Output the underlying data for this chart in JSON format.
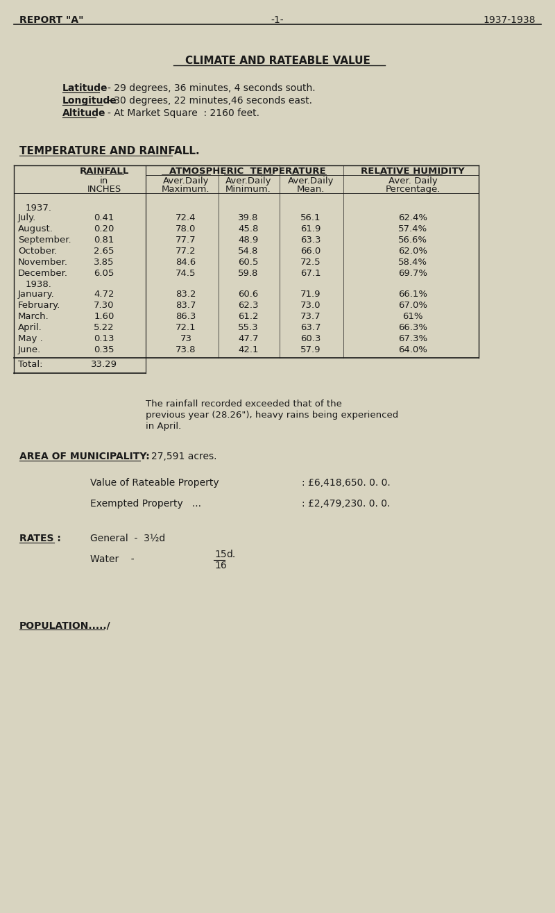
{
  "bg_color": "#d8d4c0",
  "text_color": "#1a1a1a",
  "header_left": "REPORT \"A\"",
  "header_center": "-1-",
  "header_right": "1937-1938",
  "title": "CLIMATE AND RATEABLE VALUE",
  "latitude_label": "Latitude",
  "latitude_value": "- 29 degrees, 36 minutes, 4 seconds south.",
  "longitude_label": "Longitude",
  "longitude_value": "- 30 degrees, 22 minutes,46 seconds east.",
  "altitude_label": "Altitude",
  "altitude_value": "- At Market Square  : 2160 feet.",
  "section_title": "TEMPERATURE AND RAINFALL.",
  "year1937": "1937.",
  "year1938": "1938.",
  "months": [
    "July.",
    "August.",
    "September.",
    "October.",
    "November.",
    "December.",
    "January.",
    "February.",
    "March.",
    "April.",
    "May .",
    "June."
  ],
  "rainfall": [
    "0.41",
    "0.20",
    "0.81",
    "2.65",
    "3.85",
    "6.05",
    "4.72",
    "7.30",
    "1.60",
    "5.22",
    "0.13",
    "0.35"
  ],
  "max_temp": [
    "72.4",
    "78.0",
    "77.7",
    "77.2",
    "84.6",
    "74.5",
    "83.2",
    "83.7",
    "86.3",
    "72.1",
    "73",
    "73.8"
  ],
  "min_temp": [
    "39.8",
    "45.8",
    "48.9",
    "54.8",
    "60.5",
    "59.8",
    "60.6",
    "62.3",
    "61.2",
    "55.3",
    "47.7",
    "42.1"
  ],
  "mean_temp": [
    "56.1",
    "61.9",
    "63.3",
    "66.0",
    "72.5",
    "67.1",
    "71.9",
    "73.0",
    "73.7",
    "63.7",
    "60.3",
    "57.9"
  ],
  "humidity": [
    "62.4%",
    "57.4%",
    "56.6%",
    "62.0%",
    "58.4%",
    "69.7%",
    "66.1%",
    "67.0%",
    "61%",
    "66.3%",
    "67.3%",
    "64.0%"
  ],
  "total_label": "Total:",
  "total_value": "33.29",
  "note_line1": "The rainfall recorded exceeded that of the",
  "note_line2": "previous year (28.26\"), heavy rains being experienced",
  "note_line3": "in April.",
  "area_label": "AREA OF MUNICIPALITY:",
  "area_value": "27,591 acres.",
  "rateable_label": "Value of Rateable Property",
  "rateable_value": ": £6,418,650. 0. 0.",
  "exempted_label": "Exempted Property   ...",
  "exempted_value": ": £2,479,230. 0. 0.",
  "rates_label": "RATES :",
  "general_label": "General  -  3½d",
  "water_label": "Water    -  ",
  "water_fraction_num": "15",
  "water_fraction_den": "16",
  "water_d": "d.",
  "population": "POPULATION...../",
  "font_size": 10,
  "mono_font": "Courier New"
}
